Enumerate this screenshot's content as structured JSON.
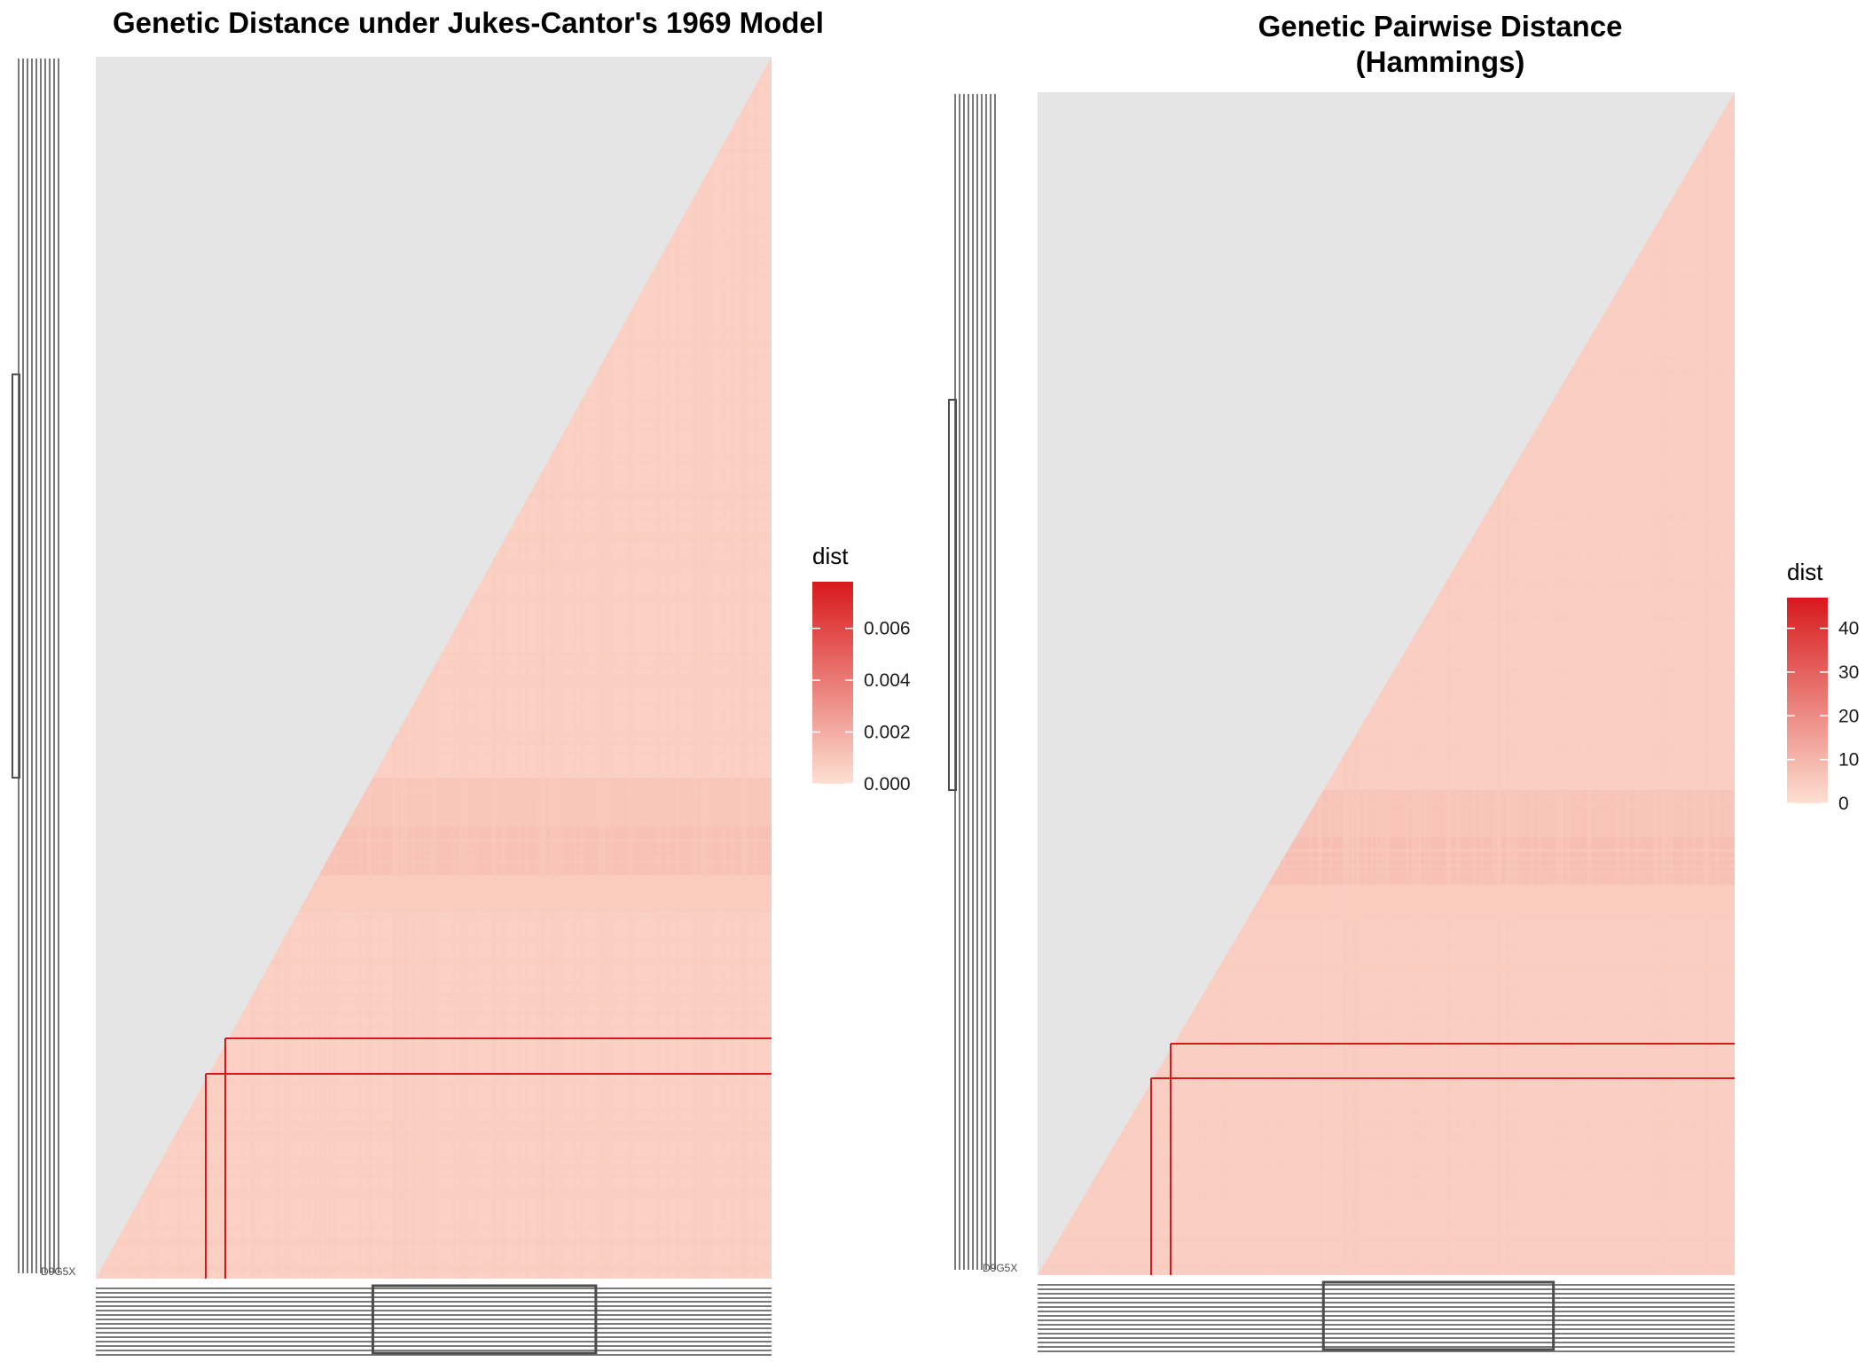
{
  "chart_data": [
    {
      "type": "heatmap",
      "title": "Genetic Distance under Jukes-Cantor's 1969 Model",
      "legend": {
        "title": "dist",
        "placement": "right",
        "range": [
          0,
          0.0078
        ],
        "ticks": [
          "0.000",
          "0.002",
          "0.004",
          "0.006"
        ],
        "tick_values": [
          0,
          0.002,
          0.004,
          0.006
        ]
      },
      "triangle": "lower-right",
      "base_value": 0.0006,
      "band_values": [
        0.0011,
        0.0013,
        0.0008
      ],
      "outlier_value": 0.0078,
      "outlier_label": "D9G5X"
    },
    {
      "type": "heatmap",
      "title": "Genetic Pairwise Distance\n(Hammings)",
      "legend": {
        "title": "dist",
        "placement": "right",
        "range": [
          0,
          47
        ],
        "ticks": [
          "0",
          "10",
          "20",
          "30",
          "40"
        ],
        "tick_values": [
          0,
          10,
          20,
          30,
          40
        ]
      },
      "triangle": "lower-right",
      "base_value": 4,
      "band_values": [
        7,
        8,
        5
      ],
      "outlier_value": 47,
      "outlier_label": "D9G5X"
    }
  ],
  "colors": {
    "panel_background": "#e5e5e5",
    "low": "#fde0d2",
    "high": "#d7191c"
  }
}
